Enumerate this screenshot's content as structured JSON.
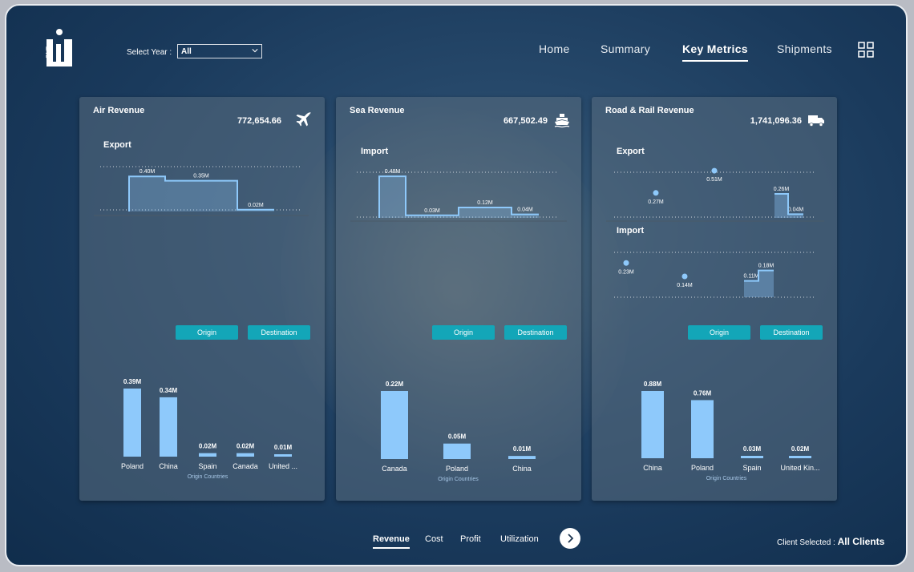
{
  "header": {
    "logo_text": "ONE",
    "year_label": "Select Year :",
    "year_value": "All",
    "nav": [
      "Home",
      "Summary",
      "Key Metrics",
      "Shipments"
    ],
    "active_nav": "Key Metrics"
  },
  "cards": [
    {
      "title": "Air Revenue",
      "total": "772,654.66",
      "icon": "plane-icon",
      "sections": [
        {
          "label": "Export",
          "points": [
            "0.40M",
            "0.35M",
            "0.02M"
          ]
        }
      ],
      "buttons": [
        "Origin",
        "Destination"
      ],
      "origin_chart": {
        "categories": [
          "Poland",
          "China",
          "Spain",
          "Canada",
          "United ..."
        ],
        "labels": [
          "0.39M",
          "0.34M",
          "0.02M",
          "0.02M",
          "0.01M"
        ],
        "xlabel": "Origin Countries"
      }
    },
    {
      "title": "Sea Revenue",
      "total": "667,502.49",
      "icon": "ship-icon",
      "sections": [
        {
          "label": "Import",
          "points": [
            "0.48M",
            "0.03M",
            "0.12M",
            "0.04M"
          ]
        }
      ],
      "buttons": [
        "Origin",
        "Destination"
      ],
      "origin_chart": {
        "categories": [
          "Canada",
          "Poland",
          "China"
        ],
        "labels": [
          "0.22M",
          "0.05M",
          "0.01M"
        ],
        "xlabel": "Origin Countries"
      }
    },
    {
      "title": "Road & Rail  Revenue",
      "total": "1,741,096.36",
      "icon": "truck-icon",
      "sections": [
        {
          "label": "Export",
          "points": [
            "0.27M",
            "0.51M",
            "0.26M",
            "0.04M"
          ]
        },
        {
          "label": "Import",
          "points": [
            "0.23M",
            "0.14M",
            "0.11M",
            "0.18M"
          ]
        }
      ],
      "buttons": [
        "Origin",
        "Destination"
      ],
      "origin_chart": {
        "categories": [
          "China",
          "Poland",
          "Spain",
          "United Kin..."
        ],
        "labels": [
          "0.88M",
          "0.76M",
          "0.03M",
          "0.02M"
        ],
        "xlabel": "Origin Countries"
      }
    }
  ],
  "chart_data": [
    {
      "type": "area",
      "title": "Export",
      "values": [
        0.4,
        0.35,
        0.02
      ],
      "labels": [
        "0.40M",
        "0.35M",
        "0.02M"
      ]
    },
    {
      "type": "bar",
      "categories": [
        "Poland",
        "China",
        "Spain",
        "Canada",
        "United ..."
      ],
      "values": [
        0.39,
        0.34,
        0.02,
        0.02,
        0.01
      ],
      "xlabel": "Origin Countries"
    },
    {
      "type": "area",
      "title": "Import",
      "values": [
        0.48,
        0.03,
        0.12,
        0.04
      ],
      "labels": [
        "0.48M",
        "0.03M",
        "0.12M",
        "0.04M"
      ]
    },
    {
      "type": "bar",
      "categories": [
        "Canada",
        "Poland",
        "China"
      ],
      "values": [
        0.22,
        0.05,
        0.01
      ],
      "xlabel": "Origin Countries"
    },
    {
      "type": "scatter",
      "title": "Export",
      "values": [
        0.27,
        0.51,
        0.26,
        0.04
      ],
      "labels": [
        "0.27M",
        "0.51M",
        "0.26M",
        "0.04M"
      ]
    },
    {
      "type": "scatter",
      "title": "Import",
      "values": [
        0.23,
        0.14,
        0.11,
        0.18
      ],
      "labels": [
        "0.23M",
        "0.14M",
        "0.11M",
        "0.18M"
      ]
    },
    {
      "type": "bar",
      "categories": [
        "China",
        "Poland",
        "Spain",
        "United Kin..."
      ],
      "values": [
        0.88,
        0.76,
        0.03,
        0.02
      ],
      "xlabel": "Origin Countries"
    }
  ],
  "footer": {
    "tabs": [
      "Revenue",
      "Cost",
      "Profit",
      "Utilization"
    ],
    "active_tab": "Revenue",
    "client_label": "Client Selected :",
    "client_value": "All Clients"
  },
  "colors": {
    "bar": "#8ec9fb",
    "button": "#13a6b8",
    "line": "#8ec9fb"
  }
}
